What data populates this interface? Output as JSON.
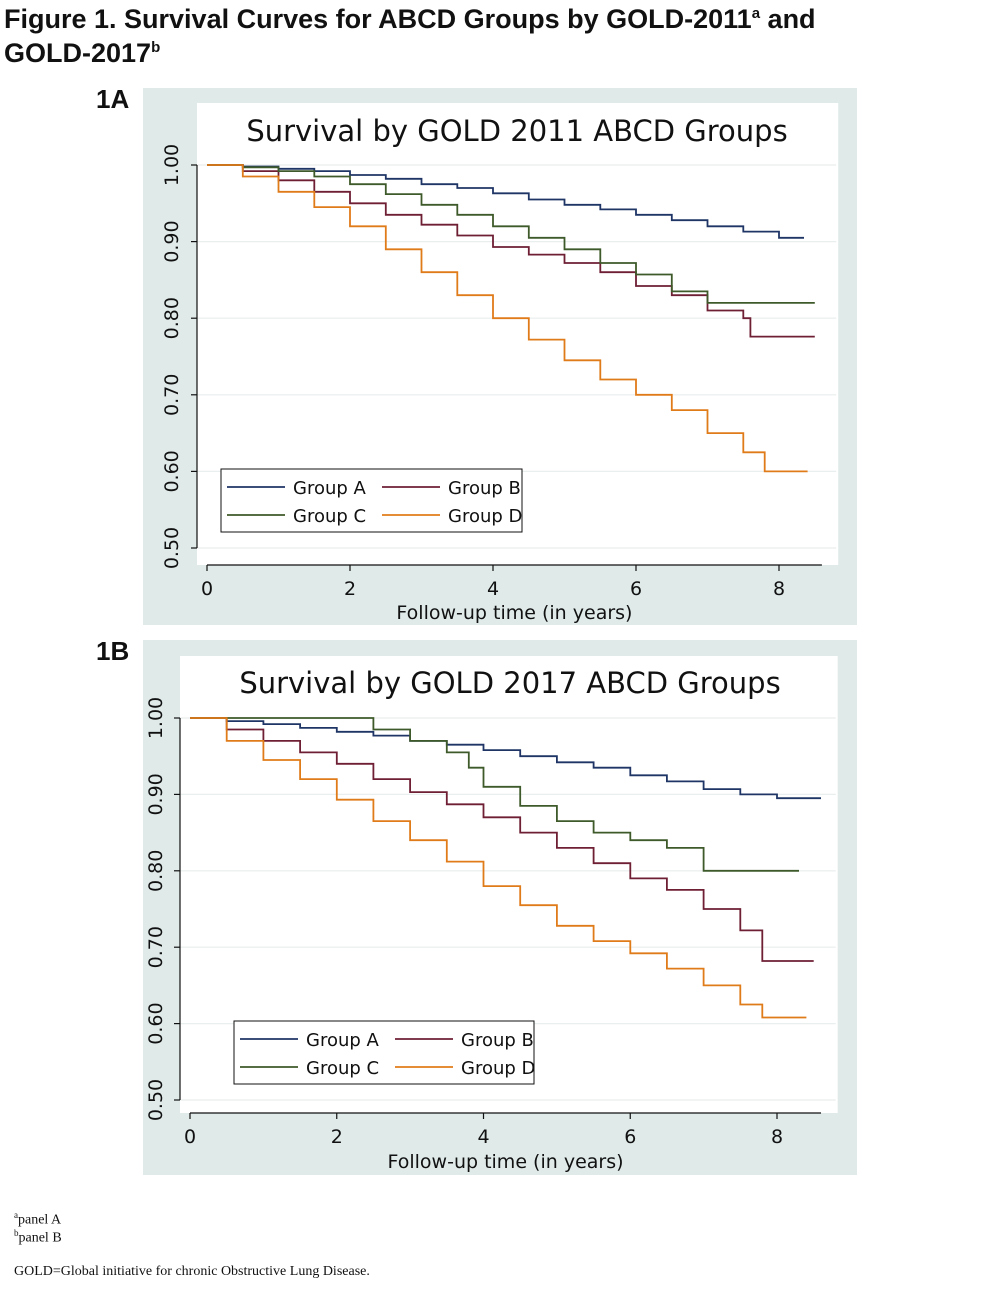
{
  "figure": {
    "title_main": "Figure 1. Survival Curves for ABCD Groups by GOLD-2011",
    "title_sup_a": "a",
    "title_and": " and",
    "title_line2": "GOLD-2017",
    "title_sup_b": "b"
  },
  "panels": [
    {
      "label": "1A"
    },
    {
      "label": "1B"
    }
  ],
  "notes": {
    "a_sup": "a",
    "a_text": "panel A",
    "b_sup": "b",
    "b_text": "panel B",
    "abbrev": "GOLD=Global initiative for chronic Obstructive Lung Disease."
  },
  "colors": {
    "panel_bg": "#dfeae9",
    "plot_bg": "#ffffff",
    "grid": "#e9eeee",
    "Group A": "#1f3566",
    "Group B": "#6e1f34",
    "Group C": "#3f5a2a",
    "Group D": "#e07b1a"
  },
  "chart_data": [
    {
      "type": "line",
      "title": "Survival by GOLD 2011 ABCD Groups",
      "xlabel": "Follow-up time (in years)",
      "ylabel": "",
      "xlim": [
        0,
        8.8
      ],
      "ylim": [
        0.5,
        1.0
      ],
      "xticks": [
        0,
        2,
        4,
        6,
        8
      ],
      "xtick_labels": [
        "0",
        "2",
        "4",
        "6",
        "8"
      ],
      "yticks": [
        0.5,
        0.6,
        0.7,
        0.8,
        0.9,
        1.0
      ],
      "ytick_labels": [
        "0.50",
        "0.60",
        "0.70",
        "0.80",
        "0.90",
        "1.00"
      ],
      "grid": true,
      "legend_position": "bottom-left",
      "legend_order": [
        "Group A",
        "Group B",
        "Group C",
        "Group D"
      ],
      "series": [
        {
          "name": "Group A",
          "x": [
            0,
            0.5,
            1,
            1.5,
            2,
            2.5,
            3,
            3.5,
            4,
            4.5,
            5,
            5.5,
            6,
            6.5,
            7,
            7.5,
            8,
            8.35
          ],
          "y": [
            1.0,
            0.998,
            0.995,
            0.992,
            0.987,
            0.982,
            0.975,
            0.97,
            0.963,
            0.955,
            0.948,
            0.942,
            0.935,
            0.928,
            0.92,
            0.913,
            0.905,
            0.905
          ]
        },
        {
          "name": "Group B",
          "x": [
            0,
            0.5,
            1,
            1.5,
            2,
            2.5,
            3,
            3.5,
            4,
            4.5,
            5,
            5.5,
            6,
            6.5,
            7,
            7.5,
            7.6,
            8,
            8.5
          ],
          "y": [
            1.0,
            0.992,
            0.98,
            0.965,
            0.95,
            0.935,
            0.922,
            0.908,
            0.893,
            0.883,
            0.872,
            0.86,
            0.842,
            0.83,
            0.81,
            0.8,
            0.776,
            0.776,
            0.776
          ]
        },
        {
          "name": "Group C",
          "x": [
            0,
            0.5,
            1,
            1.5,
            2,
            2.5,
            3,
            3.5,
            4,
            4.5,
            5,
            5.5,
            6,
            6.5,
            7,
            7.5,
            8,
            8.5
          ],
          "y": [
            1.0,
            0.997,
            0.992,
            0.985,
            0.975,
            0.962,
            0.948,
            0.935,
            0.92,
            0.905,
            0.89,
            0.872,
            0.857,
            0.835,
            0.82,
            0.82,
            0.82,
            0.82
          ]
        },
        {
          "name": "Group D",
          "x": [
            0,
            0.5,
            1,
            1.5,
            2,
            2.5,
            3,
            3.5,
            4,
            4.5,
            5,
            5.5,
            6,
            6.5,
            7,
            7.5,
            7.8,
            8.4
          ],
          "y": [
            1.0,
            0.985,
            0.965,
            0.945,
            0.92,
            0.89,
            0.86,
            0.83,
            0.8,
            0.772,
            0.745,
            0.72,
            0.7,
            0.68,
            0.65,
            0.625,
            0.6,
            0.6
          ]
        }
      ]
    },
    {
      "type": "line",
      "title": "Survival by GOLD 2017 ABCD Groups",
      "xlabel": "Follow-up time (in years)",
      "ylabel": "",
      "xlim": [
        0,
        8.8
      ],
      "ylim": [
        0.5,
        1.0
      ],
      "xticks": [
        0,
        2,
        4,
        6,
        8
      ],
      "xtick_labels": [
        "0",
        "2",
        "4",
        "6",
        "8"
      ],
      "yticks": [
        0.5,
        0.6,
        0.7,
        0.8,
        0.9,
        1.0
      ],
      "ytick_labels": [
        "0.50",
        "0.60",
        "0.70",
        "0.80",
        "0.90",
        "1.00"
      ],
      "grid": true,
      "legend_position": "bottom-left",
      "legend_order": [
        "Group A",
        "Group B",
        "Group C",
        "Group D"
      ],
      "series": [
        {
          "name": "Group A",
          "x": [
            0,
            0.5,
            1,
            1.5,
            2,
            2.5,
            3,
            3.5,
            4,
            4.5,
            5,
            5.5,
            6,
            6.5,
            7,
            7.5,
            8,
            8.6
          ],
          "y": [
            1.0,
            0.996,
            0.992,
            0.987,
            0.982,
            0.977,
            0.97,
            0.965,
            0.958,
            0.95,
            0.942,
            0.935,
            0.925,
            0.917,
            0.907,
            0.9,
            0.895,
            0.895
          ]
        },
        {
          "name": "Group B",
          "x": [
            0,
            0.5,
            1,
            1.5,
            2,
            2.5,
            3,
            3.5,
            4,
            4.5,
            5,
            5.5,
            6,
            6.5,
            7,
            7.5,
            7.8,
            8.5
          ],
          "y": [
            1.0,
            0.985,
            0.97,
            0.955,
            0.94,
            0.92,
            0.903,
            0.887,
            0.87,
            0.85,
            0.83,
            0.81,
            0.79,
            0.775,
            0.75,
            0.722,
            0.682,
            0.682
          ]
        },
        {
          "name": "Group C",
          "x": [
            0,
            1,
            2,
            2.5,
            3,
            3.5,
            3.8,
            4,
            4.5,
            5,
            5.5,
            6,
            6.5,
            7,
            7.5,
            8,
            8.3
          ],
          "y": [
            1.0,
            1.0,
            1.0,
            0.985,
            0.97,
            0.955,
            0.935,
            0.91,
            0.885,
            0.865,
            0.85,
            0.84,
            0.83,
            0.8,
            0.8,
            0.8,
            0.8
          ]
        },
        {
          "name": "Group D",
          "x": [
            0,
            0.5,
            1,
            1.5,
            2,
            2.5,
            3,
            3.5,
            4,
            4.5,
            5,
            5.5,
            6,
            6.5,
            7,
            7.5,
            7.8,
            8.4
          ],
          "y": [
            1.0,
            0.97,
            0.945,
            0.92,
            0.893,
            0.865,
            0.84,
            0.812,
            0.78,
            0.755,
            0.728,
            0.708,
            0.692,
            0.672,
            0.65,
            0.625,
            0.608,
            0.608
          ]
        }
      ]
    }
  ]
}
